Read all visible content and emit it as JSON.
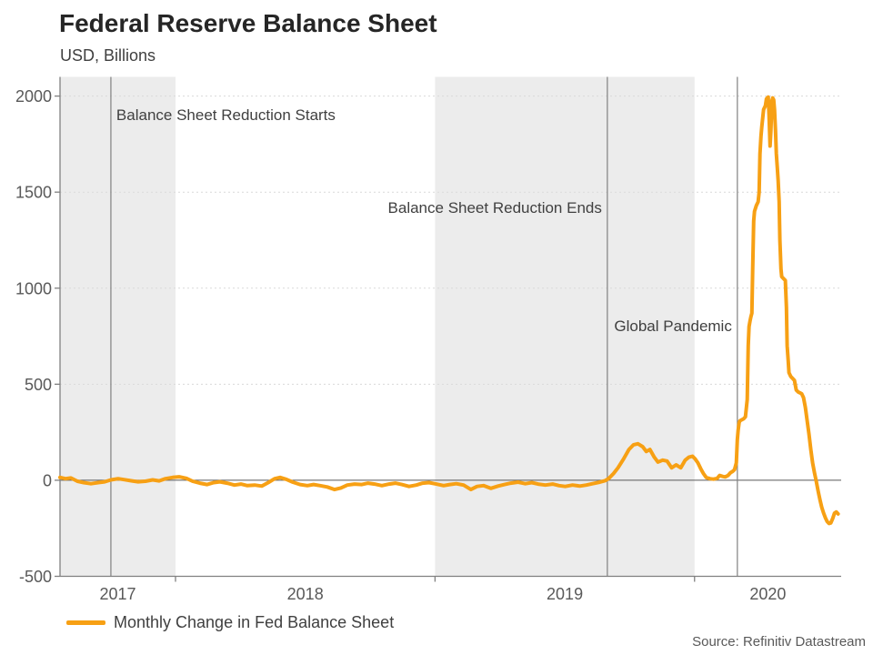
{
  "title": "Federal Reserve Balance Sheet",
  "subtitle": "USD, Billions",
  "source": "Source: Refinitiv Datastream",
  "legend": {
    "label": "Monthly Change in Fed Balance Sheet",
    "color": "#F7A014"
  },
  "chart_data": {
    "type": "line",
    "title": "Federal Reserve Balance Sheet",
    "subtitle": "USD, Billions",
    "xlabel": "",
    "ylabel": "USD, Billions",
    "xlim": [
      2017.555,
      2020.565
    ],
    "ylim": [
      -500,
      2100
    ],
    "y_ticks": [
      -500,
      0,
      500,
      1000,
      1500,
      2000
    ],
    "x_ticks": [
      2017,
      2018,
      2019,
      2020
    ],
    "grid": "horizontal-dashed",
    "legend_position": "bottom-left",
    "colors": {
      "band": "#ECECEC",
      "grid": "#D9D9D9",
      "zero_line": "#595959",
      "axis": "#808080",
      "tick_text": "#595959",
      "event_line": "#808080",
      "annotation_text": "#404040",
      "series": "#F7A014"
    },
    "shaded_year_bands": [
      [
        2017.555,
        2018
      ],
      [
        2019,
        2020
      ]
    ],
    "annotations": [
      {
        "label": "Balance Sheet Reduction Starts",
        "t": 2017.751,
        "side": "right",
        "label_y": 132
      },
      {
        "label": "Balance Sheet Reduction Ends",
        "t": 2019.664,
        "side": "left",
        "label_y": 234
      },
      {
        "label": "Global Pandemic",
        "t": 2020.165,
        "side": "left",
        "label_y": 364
      }
    ],
    "series": [
      {
        "name": "Monthly Change in Fed Balance Sheet",
        "color": "#F7A014",
        "points": [
          [
            2017.555,
            15
          ],
          [
            2017.576,
            8
          ],
          [
            2017.597,
            12
          ],
          [
            2017.622,
            -5
          ],
          [
            2017.646,
            -12
          ],
          [
            2017.674,
            -18
          ],
          [
            2017.702,
            -12
          ],
          [
            2017.727,
            -8
          ],
          [
            2017.751,
            2
          ],
          [
            2017.779,
            8
          ],
          [
            2017.804,
            3
          ],
          [
            2017.832,
            -3
          ],
          [
            2017.856,
            -8
          ],
          [
            2017.884,
            -5
          ],
          [
            2017.912,
            2
          ],
          [
            2017.937,
            -3
          ],
          [
            2017.961,
            8
          ],
          [
            2017.989,
            15
          ],
          [
            2018.014,
            18
          ],
          [
            2018.042,
            10
          ],
          [
            2018.066,
            -5
          ],
          [
            2018.094,
            -15
          ],
          [
            2018.122,
            -22
          ],
          [
            2018.147,
            -12
          ],
          [
            2018.171,
            -8
          ],
          [
            2018.199,
            -15
          ],
          [
            2018.227,
            -25
          ],
          [
            2018.252,
            -20
          ],
          [
            2018.277,
            -28
          ],
          [
            2018.305,
            -25
          ],
          [
            2018.333,
            -30
          ],
          [
            2018.357,
            -12
          ],
          [
            2018.382,
            8
          ],
          [
            2018.403,
            15
          ],
          [
            2018.427,
            5
          ],
          [
            2018.452,
            -10
          ],
          [
            2018.48,
            -22
          ],
          [
            2018.508,
            -28
          ],
          [
            2018.532,
            -22
          ],
          [
            2018.557,
            -28
          ],
          [
            2018.585,
            -35
          ],
          [
            2018.613,
            -48
          ],
          [
            2018.637,
            -40
          ],
          [
            2018.662,
            -25
          ],
          [
            2018.69,
            -20
          ],
          [
            2018.718,
            -22
          ],
          [
            2018.742,
            -15
          ],
          [
            2018.767,
            -20
          ],
          [
            2018.795,
            -28
          ],
          [
            2018.823,
            -20
          ],
          [
            2018.847,
            -15
          ],
          [
            2018.872,
            -22
          ],
          [
            2018.9,
            -32
          ],
          [
            2018.928,
            -25
          ],
          [
            2018.952,
            -15
          ],
          [
            2018.977,
            -12
          ],
          [
            2019.005,
            -20
          ],
          [
            2019.033,
            -28
          ],
          [
            2019.057,
            -22
          ],
          [
            2019.082,
            -18
          ],
          [
            2019.11,
            -25
          ],
          [
            2019.138,
            -48
          ],
          [
            2019.162,
            -32
          ],
          [
            2019.187,
            -28
          ],
          [
            2019.215,
            -42
          ],
          [
            2019.243,
            -30
          ],
          [
            2019.268,
            -22
          ],
          [
            2019.292,
            -15
          ],
          [
            2019.32,
            -10
          ],
          [
            2019.348,
            -18
          ],
          [
            2019.373,
            -12
          ],
          [
            2019.397,
            -20
          ],
          [
            2019.425,
            -25
          ],
          [
            2019.453,
            -20
          ],
          [
            2019.478,
            -28
          ],
          [
            2019.502,
            -32
          ],
          [
            2019.53,
            -25
          ],
          [
            2019.558,
            -30
          ],
          [
            2019.583,
            -25
          ],
          [
            2019.607,
            -18
          ],
          [
            2019.635,
            -10
          ],
          [
            2019.656,
            -2
          ],
          [
            2019.67,
            10
          ],
          [
            2019.688,
            35
          ],
          [
            2019.705,
            65
          ],
          [
            2019.726,
            110
          ],
          [
            2019.747,
            160
          ],
          [
            2019.765,
            185
          ],
          [
            2019.782,
            190
          ],
          [
            2019.8,
            175
          ],
          [
            2019.814,
            150
          ],
          [
            2019.828,
            160
          ],
          [
            2019.845,
            120
          ],
          [
            2019.859,
            95
          ],
          [
            2019.877,
            105
          ],
          [
            2019.894,
            100
          ],
          [
            2019.912,
            65
          ],
          [
            2019.929,
            80
          ],
          [
            2019.947,
            65
          ],
          [
            2019.964,
            105
          ],
          [
            2019.978,
            120
          ],
          [
            2019.992,
            125
          ],
          [
            2020.003,
            110
          ],
          [
            2020.013,
            90
          ],
          [
            2020.024,
            60
          ],
          [
            2020.034,
            35
          ],
          [
            2020.045,
            15
          ],
          [
            2020.059,
            8
          ],
          [
            2020.073,
            6
          ],
          [
            2020.087,
            10
          ],
          [
            2020.097,
            25
          ],
          [
            2020.108,
            20
          ],
          [
            2020.118,
            17
          ],
          [
            2020.129,
            25
          ],
          [
            2020.139,
            40
          ],
          [
            2020.146,
            45
          ],
          [
            2020.154,
            55
          ],
          [
            2020.161,
            90
          ],
          [
            2020.165,
            210
          ],
          [
            2020.168,
            260
          ],
          [
            2020.172,
            300
          ],
          [
            2020.175,
            310
          ],
          [
            2020.189,
            320
          ],
          [
            2020.196,
            330
          ],
          [
            2020.203,
            420
          ],
          [
            2020.207,
            700
          ],
          [
            2020.21,
            800
          ],
          [
            2020.214,
            830
          ],
          [
            2020.217,
            850
          ],
          [
            2020.221,
            870
          ],
          [
            2020.224,
            1100
          ],
          [
            2020.228,
            1350
          ],
          [
            2020.231,
            1400
          ],
          [
            2020.238,
            1430
          ],
          [
            2020.245,
            1450
          ],
          [
            2020.249,
            1500
          ],
          [
            2020.252,
            1700
          ],
          [
            2020.256,
            1790
          ],
          [
            2020.259,
            1840
          ],
          [
            2020.266,
            1930
          ],
          [
            2020.273,
            1950
          ],
          [
            2020.277,
            1985
          ],
          [
            2020.28,
            1990
          ],
          [
            2020.284,
            1995
          ],
          [
            2020.287,
            1900
          ],
          [
            2020.291,
            1740
          ],
          [
            2020.294,
            1820
          ],
          [
            2020.298,
            1975
          ],
          [
            2020.301,
            1990
          ],
          [
            2020.305,
            1980
          ],
          [
            2020.308,
            1930
          ],
          [
            2020.312,
            1820
          ],
          [
            2020.315,
            1700
          ],
          [
            2020.319,
            1625
          ],
          [
            2020.322,
            1560
          ],
          [
            2020.326,
            1450
          ],
          [
            2020.329,
            1250
          ],
          [
            2020.333,
            1100
          ],
          [
            2020.336,
            1060
          ],
          [
            2020.343,
            1050
          ],
          [
            2020.35,
            1040
          ],
          [
            2020.354,
            900
          ],
          [
            2020.357,
            700
          ],
          [
            2020.361,
            620
          ],
          [
            2020.364,
            560
          ],
          [
            2020.371,
            540
          ],
          [
            2020.378,
            530
          ],
          [
            2020.385,
            520
          ],
          [
            2020.392,
            470
          ],
          [
            2020.399,
            460
          ],
          [
            2020.406,
            455
          ],
          [
            2020.413,
            450
          ],
          [
            2020.42,
            430
          ],
          [
            2020.427,
            380
          ],
          [
            2020.434,
            310
          ],
          [
            2020.441,
            240
          ],
          [
            2020.448,
            160
          ],
          [
            2020.455,
            90
          ],
          [
            2020.462,
            40
          ],
          [
            2020.469,
            -5
          ],
          [
            2020.476,
            -55
          ],
          [
            2020.483,
            -100
          ],
          [
            2020.49,
            -140
          ],
          [
            2020.497,
            -170
          ],
          [
            2020.504,
            -195
          ],
          [
            2020.511,
            -215
          ],
          [
            2020.518,
            -225
          ],
          [
            2020.525,
            -222
          ],
          [
            2020.532,
            -200
          ],
          [
            2020.539,
            -172
          ],
          [
            2020.546,
            -165
          ],
          [
            2020.553,
            -175
          ]
        ]
      }
    ]
  }
}
